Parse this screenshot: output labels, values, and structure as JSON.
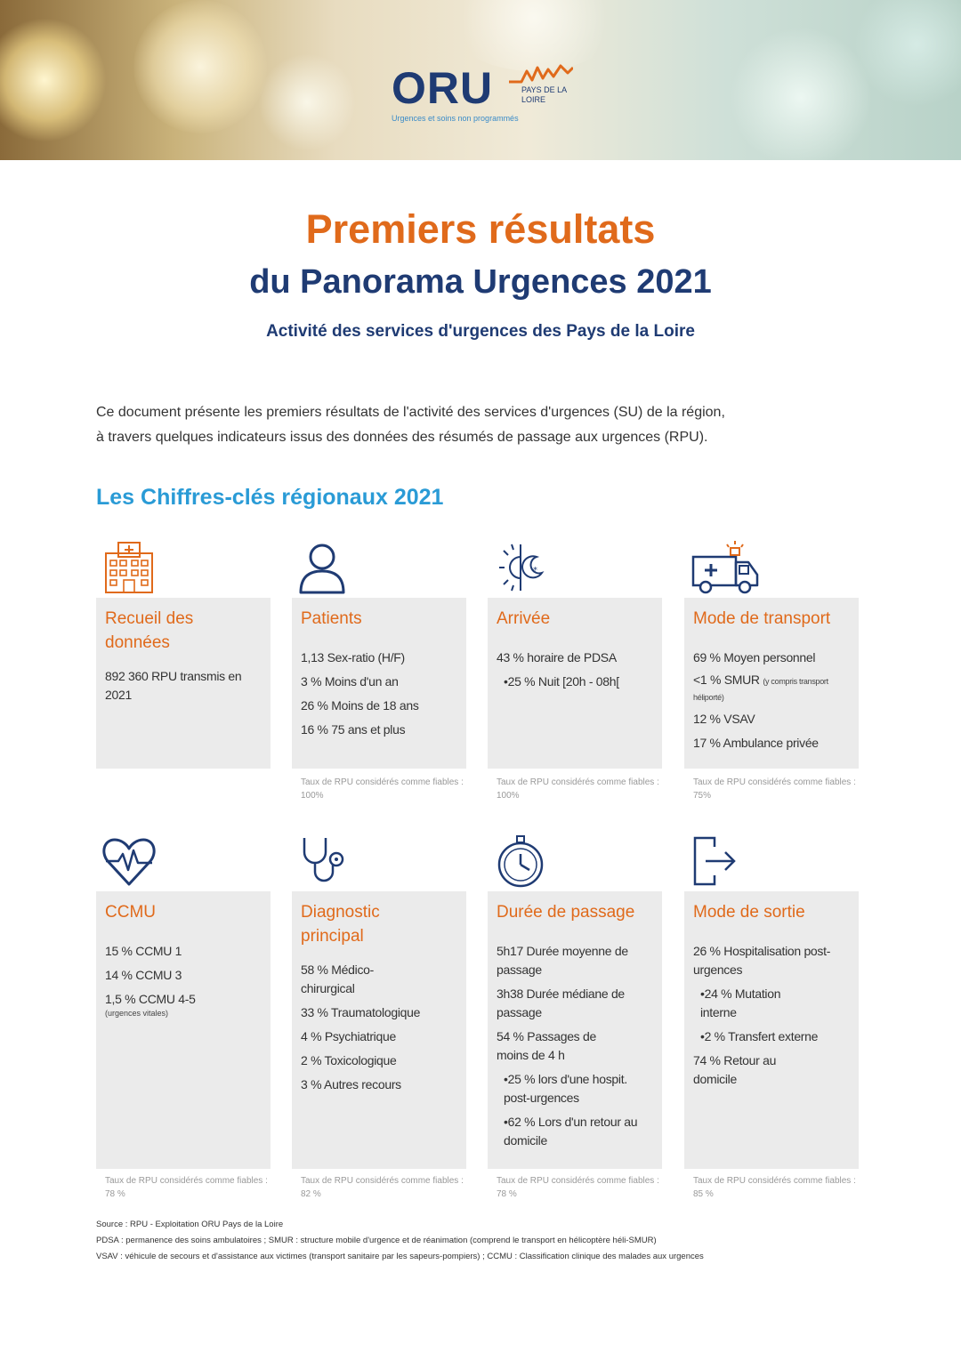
{
  "logo": {
    "name": "ORU",
    "region": "PAYS DE LA LOIRE",
    "tagline": "Urgences et soins non programmés"
  },
  "title_line1": "Premiers résultats",
  "title_line2": "du Panorama Urgences 2021",
  "subtitle": "Activité des services d'urgences des Pays de la Loire",
  "intro_line1": "Ce document présente les premiers résultats de l'activité des services d'urgences (SU) de la région,",
  "intro_line2": "à travers quelques indicateurs issus des données des résumés de passage aux urgences (RPU).",
  "section_title": "Les Chiffres-clés régionaux 2021",
  "cards": {
    "recueil": {
      "title_1": "Recueil des",
      "title_2": "données",
      "lines": [
        "892 360 RPU transmis en 2021"
      ]
    },
    "patients": {
      "title": "Patients",
      "lines": [
        "1,13 Sex-ratio (H/F)",
        "3 % Moins d'un an",
        "26 % Moins de 18 ans",
        "16 % 75 ans et plus"
      ],
      "note": "Taux de RPU considérés comme fiables : 100%"
    },
    "arrivee": {
      "title": "Arrivée",
      "lines": [
        "43 % horaire de PDSA",
        "•25 % Nuit [20h - 08h["
      ],
      "note": "Taux de RPU considérés comme fiables : 100%"
    },
    "transport": {
      "title": "Mode de transport",
      "line1": "69 % Moyen personnel",
      "line2_main": "<1 % SMUR",
      "line2_small": "(y compris transport héliporté)",
      "line3": "12 % VSAV",
      "line4": "17 % Ambulance privée",
      "note": "Taux de RPU considérés comme fiables : 75%"
    },
    "ccmu": {
      "title": "CCMU",
      "line1": "15 % CCMU 1",
      "line2": "14 % CCMU 3",
      "line3": "1,5 % CCMU 4-5",
      "line3_small": "(urgences vitales)",
      "note": "Taux de RPU considérés comme fiables : 78 %"
    },
    "diagnostic": {
      "title_1": "Diagnostic",
      "title_2": "principal",
      "lines": [
        "58 % Médico-chirurgical",
        "33 % Traumatologique",
        "4 % Psychiatrique",
        "2 % Toxicologique",
        "3 % Autres recours"
      ],
      "note": "Taux de RPU considérés comme fiables : 82 %"
    },
    "duree": {
      "title": "Durée de passage",
      "lines": [
        "5h17 Durée moyenne de passage",
        "3h38 Durée médiane de passage",
        "54 % Passages de moins de 4 h",
        "•25 % lors d'une hospit. post-urgences",
        "•62 % Lors d'un retour au domicile"
      ],
      "note": "Taux de RPU considérés comme fiables : 78 %"
    },
    "sortie": {
      "title": "Mode de sortie",
      "lines": [
        "26 % Hospitalisation post-urgences",
        "•24 % Mutation interne",
        "•2 % Transfert externe",
        "74 % Retour au domicile"
      ],
      "note": "Taux de RPU considérés comme fiables : 85 %"
    }
  },
  "footer": {
    "source": "Source : RPU - Exploitation ORU Pays de la Loire",
    "line2": "PDSA : permanence des soins ambulatoires ; SMUR : structure mobile d'urgence et de réanimation (comprend le transport en hélicoptère héli-SMUR)",
    "line3": "VSAV : véhicule de secours et d'assistance aux victimes (transport sanitaire par les sapeurs-pompiers) ; CCMU : Classification clinique des malades aux urgences"
  },
  "colors": {
    "orange": "#e06a1b",
    "navy": "#1f3b73",
    "blue": "#2a9bd6",
    "card_bg": "#ebebeb"
  }
}
